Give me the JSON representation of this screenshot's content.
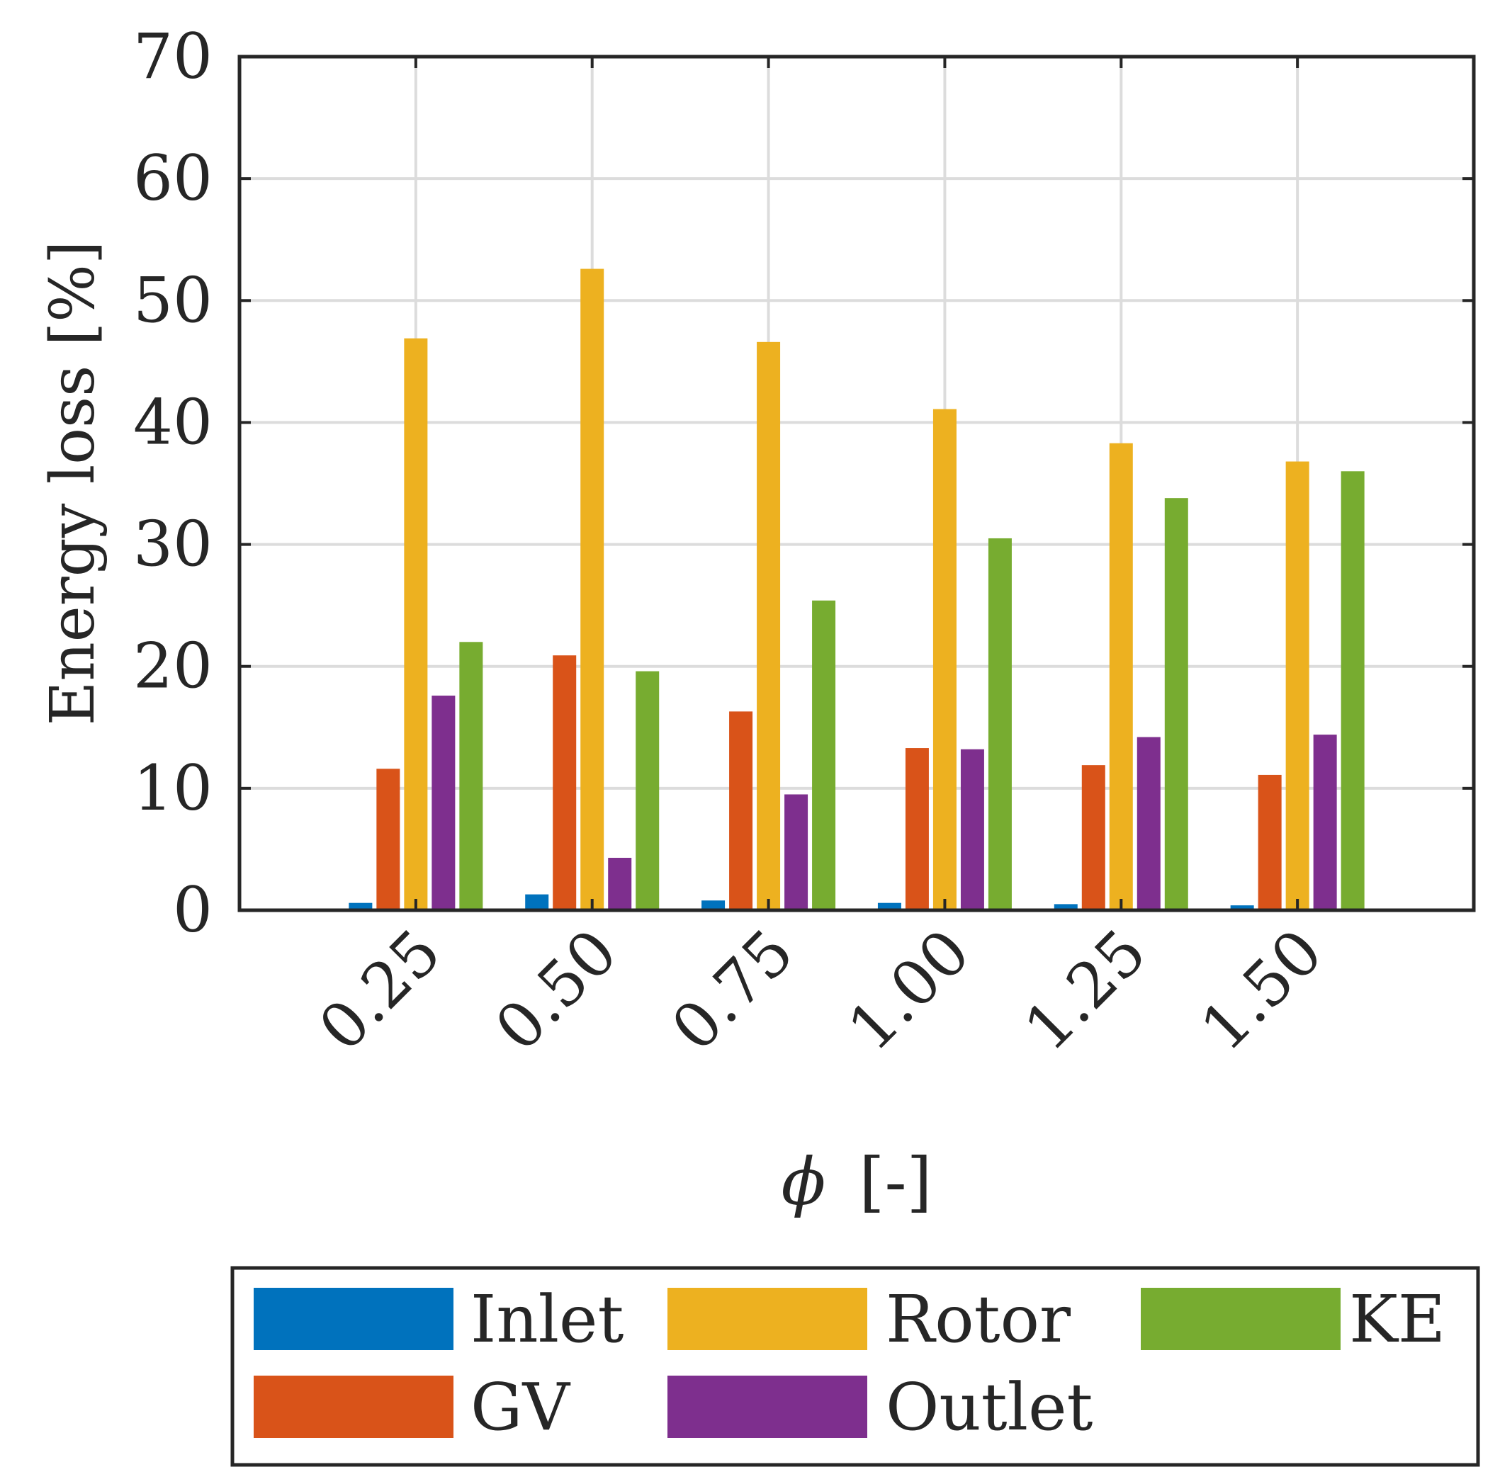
{
  "chart_data": {
    "type": "bar",
    "xlabel_symbol": "ϕ",
    "xlabel_unit": "[-]",
    "ylabel": "Energy loss [%]",
    "categories": [
      "0.25",
      "0.50",
      "0.75",
      "1.00",
      "1.25",
      "1.50"
    ],
    "ylim": [
      0,
      70
    ],
    "yticks": [
      0,
      10,
      20,
      30,
      40,
      50,
      60,
      70
    ],
    "grid": true,
    "legend_position": "bottom",
    "series": [
      {
        "name": "Inlet",
        "color": "#0072BD",
        "values": [
          0.6,
          1.3,
          0.8,
          0.6,
          0.5,
          0.4
        ]
      },
      {
        "name": "GV",
        "color": "#D95319",
        "values": [
          11.6,
          20.9,
          16.3,
          13.3,
          11.9,
          11.1
        ]
      },
      {
        "name": "Rotor",
        "color": "#EDB120",
        "values": [
          46.9,
          52.6,
          46.6,
          41.1,
          38.3,
          36.8
        ]
      },
      {
        "name": "Outlet",
        "color": "#7E2F8E",
        "values": [
          17.6,
          4.3,
          9.5,
          13.2,
          14.2,
          14.4
        ]
      },
      {
        "name": "KE",
        "color": "#77AC30",
        "values": [
          22.0,
          19.6,
          25.4,
          30.5,
          33.8,
          36.0
        ]
      }
    ]
  }
}
